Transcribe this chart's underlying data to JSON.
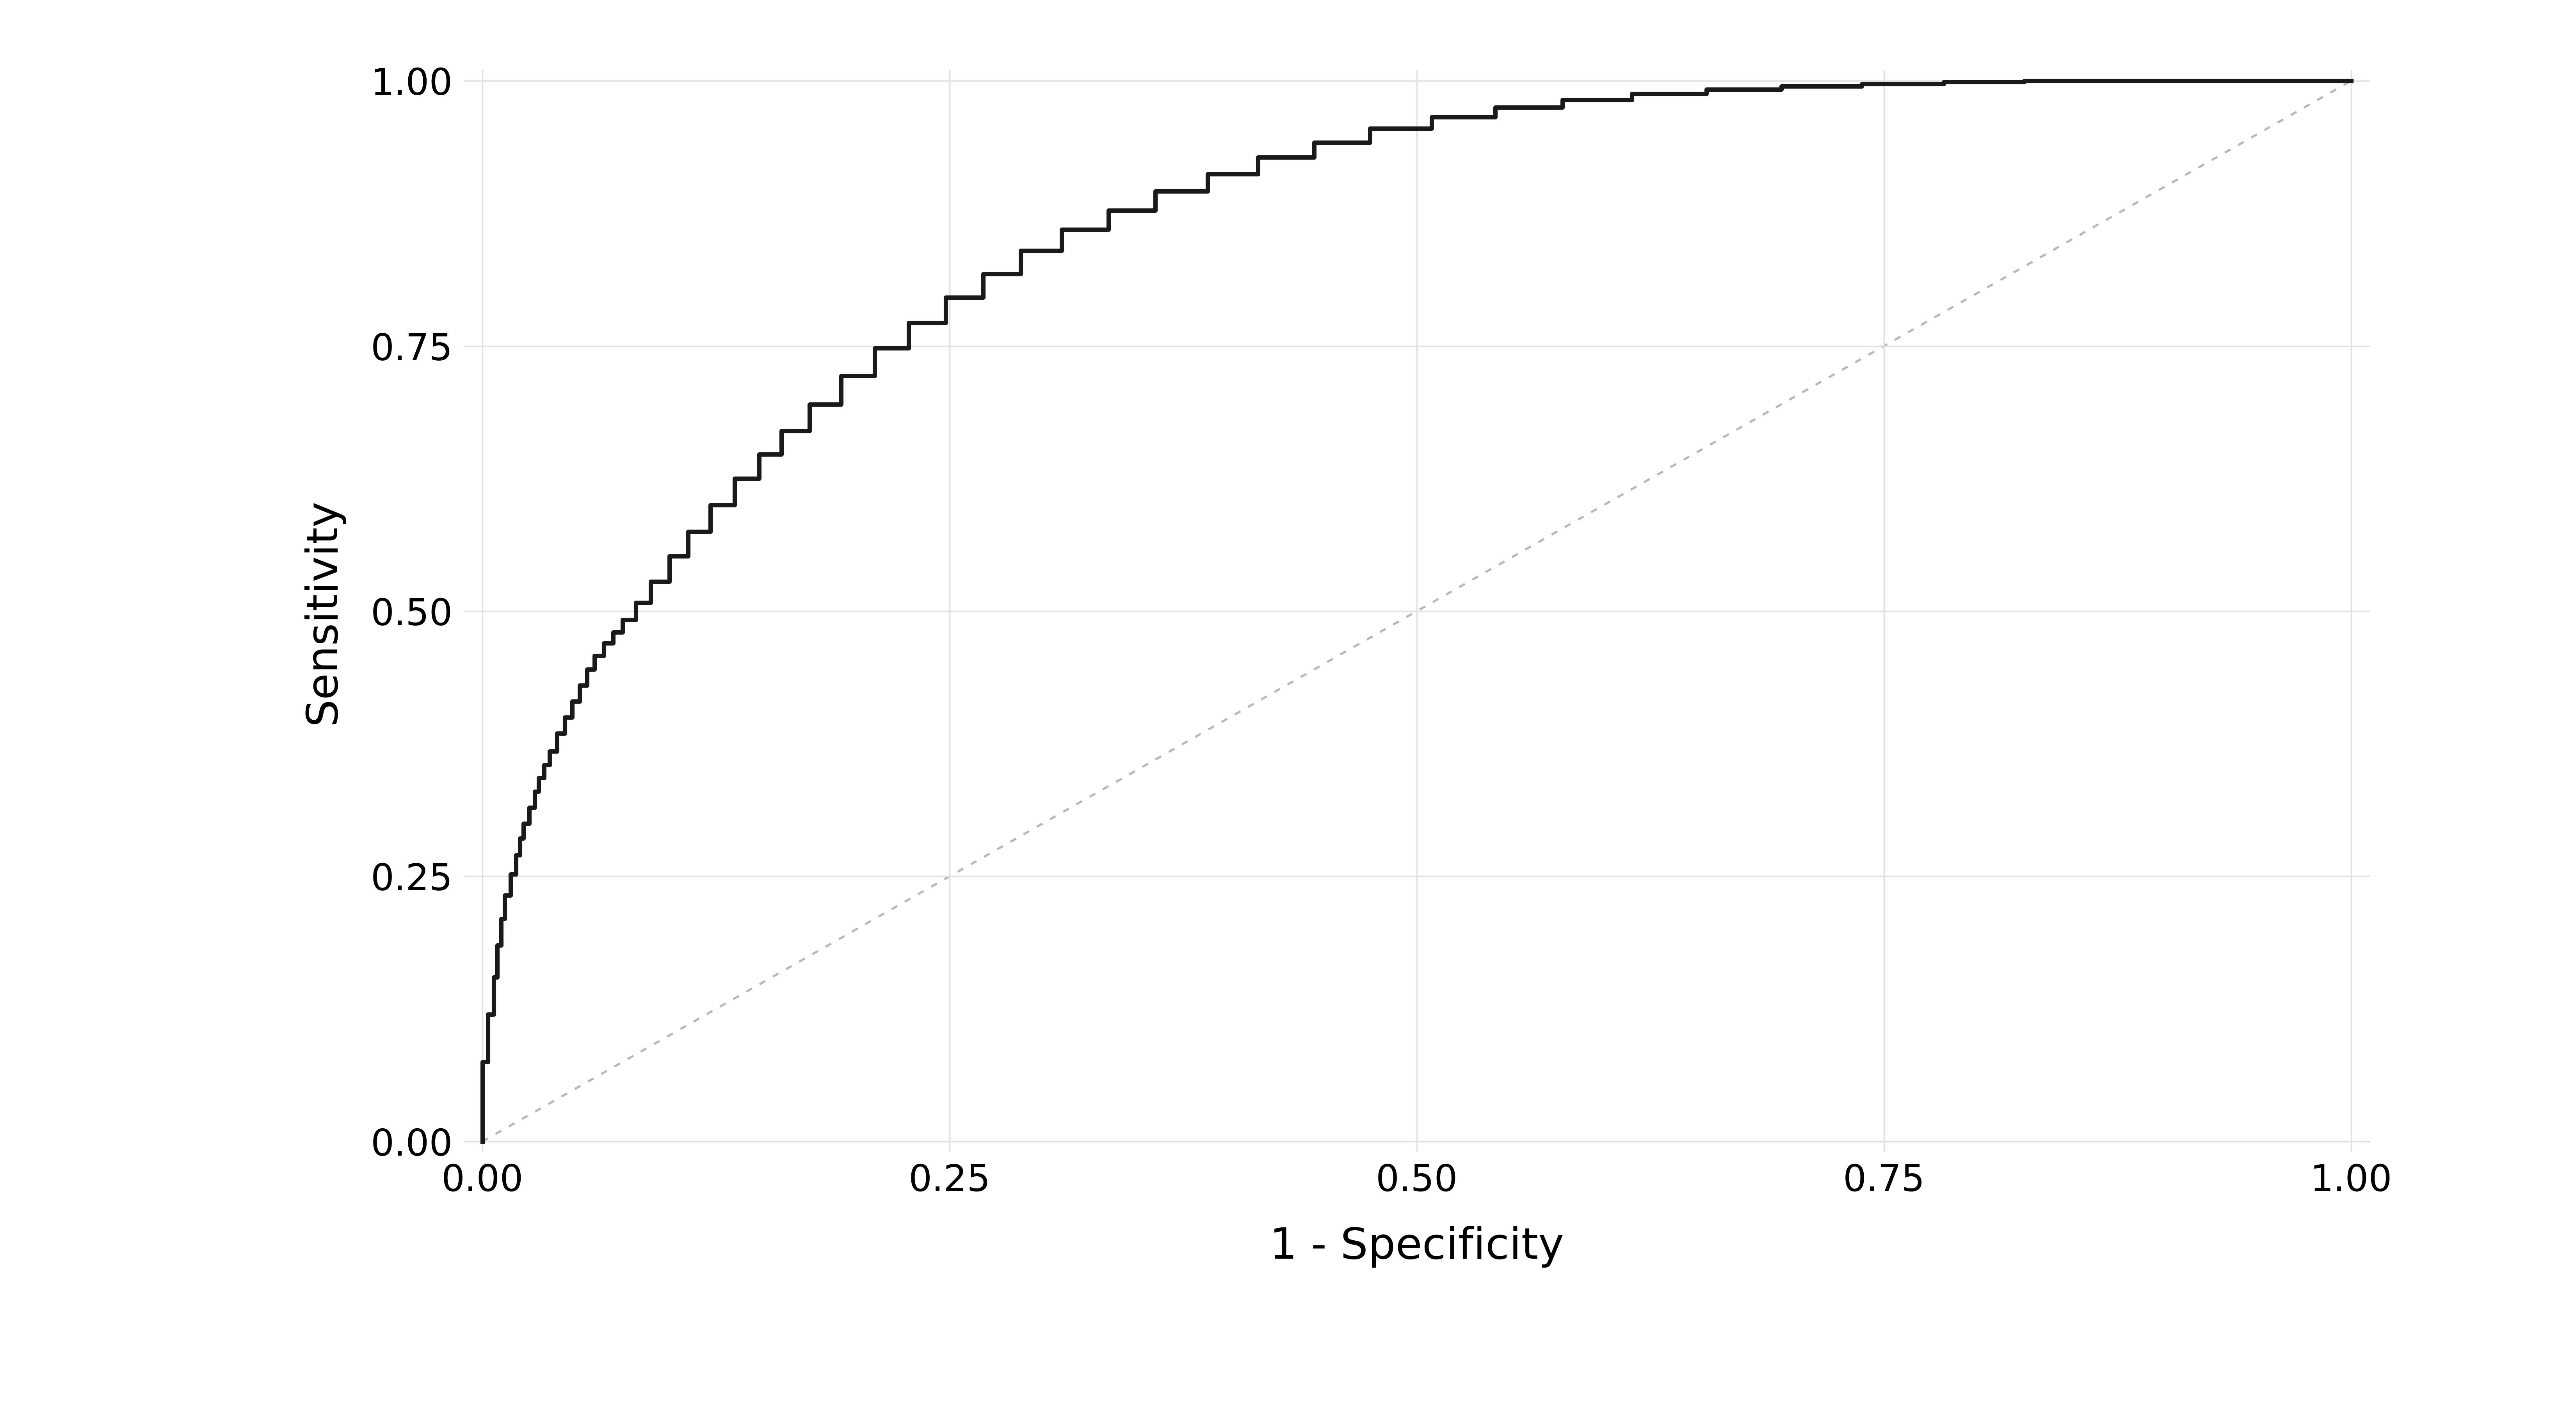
{
  "title": "",
  "xlabel": "1 - Specificity",
  "ylabel": "Sensitivity",
  "xlim": [
    -0.01,
    1.01
  ],
  "ylim": [
    -0.01,
    1.01
  ],
  "xticks": [
    0.0,
    0.25,
    0.5,
    0.75,
    1.0
  ],
  "yticks": [
    0.0,
    0.25,
    0.5,
    0.75,
    1.0
  ],
  "background_color": "#ffffff",
  "grid_color": "#e0e0e0",
  "roc_color": "#1a1a1a",
  "diag_color": "#b8b8b8",
  "roc_linewidth": 8,
  "diag_linewidth": 4,
  "xlabel_fontsize": 80,
  "ylabel_fontsize": 80,
  "tick_fontsize": 68,
  "roc_x": [
    0.0,
    0.0,
    0.003,
    0.003,
    0.006,
    0.006,
    0.008,
    0.008,
    0.01,
    0.01,
    0.012,
    0.012,
    0.015,
    0.015,
    0.018,
    0.018,
    0.02,
    0.02,
    0.022,
    0.022,
    0.025,
    0.025,
    0.028,
    0.028,
    0.03,
    0.03,
    0.033,
    0.033,
    0.036,
    0.036,
    0.04,
    0.04,
    0.044,
    0.044,
    0.048,
    0.048,
    0.052,
    0.052,
    0.056,
    0.056,
    0.06,
    0.06,
    0.065,
    0.065,
    0.07,
    0.07,
    0.075,
    0.075,
    0.082,
    0.082,
    0.09,
    0.09,
    0.1,
    0.1,
    0.11,
    0.11,
    0.122,
    0.122,
    0.135,
    0.135,
    0.148,
    0.148,
    0.16,
    0.16,
    0.175,
    0.175,
    0.192,
    0.192,
    0.21,
    0.21,
    0.228,
    0.228,
    0.248,
    0.248,
    0.268,
    0.268,
    0.288,
    0.288,
    0.31,
    0.31,
    0.335,
    0.335,
    0.36,
    0.36,
    0.388,
    0.388,
    0.415,
    0.415,
    0.445,
    0.445,
    0.475,
    0.475,
    0.508,
    0.508,
    0.542,
    0.542,
    0.578,
    0.578,
    0.615,
    0.615,
    0.655,
    0.655,
    0.695,
    0.695,
    0.738,
    0.738,
    0.782,
    0.782,
    0.825,
    0.825,
    0.868,
    0.868,
    0.91,
    0.91,
    0.95,
    0.95,
    0.98,
    0.98,
    1.0
  ],
  "roc_y": [
    0.0,
    0.075,
    0.075,
    0.12,
    0.12,
    0.155,
    0.155,
    0.185,
    0.185,
    0.21,
    0.21,
    0.232,
    0.232,
    0.252,
    0.252,
    0.27,
    0.27,
    0.286,
    0.286,
    0.3,
    0.3,
    0.315,
    0.315,
    0.33,
    0.33,
    0.343,
    0.343,
    0.355,
    0.355,
    0.368,
    0.368,
    0.385,
    0.385,
    0.4,
    0.4,
    0.415,
    0.415,
    0.43,
    0.43,
    0.445,
    0.445,
    0.458,
    0.458,
    0.47,
    0.47,
    0.48,
    0.48,
    0.492,
    0.492,
    0.508,
    0.508,
    0.528,
    0.528,
    0.552,
    0.552,
    0.575,
    0.575,
    0.6,
    0.6,
    0.625,
    0.625,
    0.648,
    0.648,
    0.67,
    0.67,
    0.695,
    0.695,
    0.722,
    0.722,
    0.748,
    0.748,
    0.772,
    0.772,
    0.796,
    0.796,
    0.818,
    0.818,
    0.84,
    0.84,
    0.86,
    0.86,
    0.878,
    0.878,
    0.896,
    0.896,
    0.912,
    0.912,
    0.928,
    0.928,
    0.942,
    0.942,
    0.955,
    0.955,
    0.966,
    0.966,
    0.975,
    0.975,
    0.982,
    0.982,
    0.988,
    0.988,
    0.992,
    0.992,
    0.995,
    0.995,
    0.997,
    0.997,
    0.999,
    0.999,
    1.0,
    1.0,
    1.0,
    1.0,
    1.0,
    1.0,
    1.0,
    1.0,
    1.0,
    1.0
  ]
}
